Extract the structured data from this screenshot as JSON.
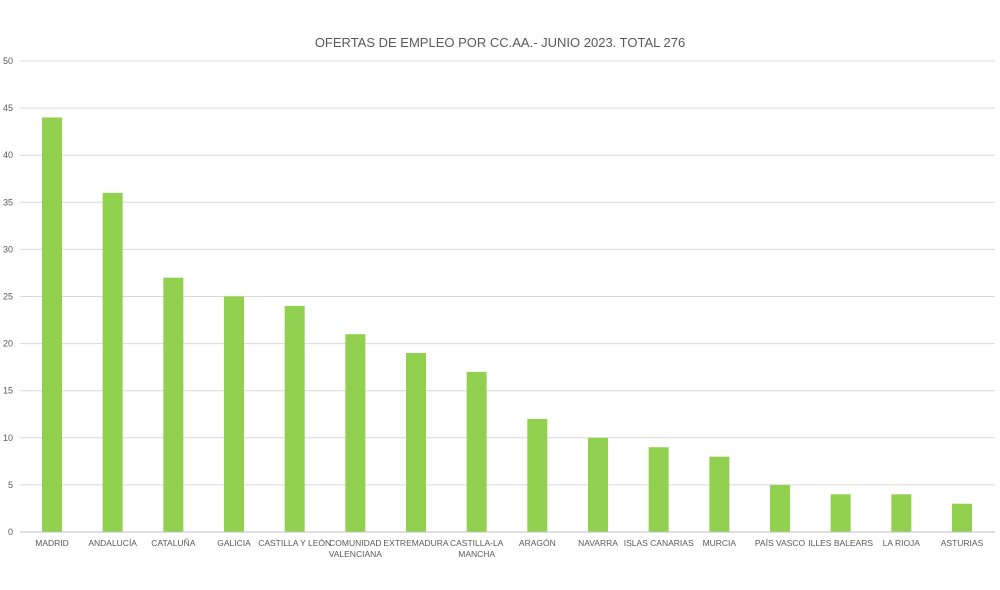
{
  "chart_data": {
    "type": "bar",
    "title": "OFERTAS DE EMPLEO POR CC.AA.- JUNIO 2023. TOTAL 276",
    "xlabel": "",
    "ylabel": "",
    "categories": [
      "MADRID",
      "ANDALUCÍA",
      "CATALUÑA",
      "GALICIA",
      "CASTILLA Y LEÓN",
      "COMUNIDAD VALENCIANA",
      "EXTREMADURA",
      "CASTILLA-LA MANCHA",
      "ARAGÓN",
      "NAVARRA",
      "ISLAS CANARIAS",
      "MURCIA",
      "PAÍS VASCO",
      "ILLES BALEARS",
      "LA RIOJA",
      "ASTURIAS"
    ],
    "category_lines": [
      [
        "MADRID"
      ],
      [
        "ANDALUCÍA"
      ],
      [
        "CATALUÑA"
      ],
      [
        "GALICIA"
      ],
      [
        "CASTILLA Y LEÓN"
      ],
      [
        "COMUNIDAD",
        "VALENCIANA"
      ],
      [
        "EXTREMADURA"
      ],
      [
        "CASTILLA-LA",
        "MANCHA"
      ],
      [
        "ARAGÓN"
      ],
      [
        "NAVARRA"
      ],
      [
        "ISLAS CANARIAS"
      ],
      [
        "MURCIA"
      ],
      [
        "PAÍS VASCO"
      ],
      [
        "ILLES BALEARS"
      ],
      [
        "LA RIOJA"
      ],
      [
        "ASTURIAS"
      ]
    ],
    "values": [
      44,
      36,
      27,
      25,
      24,
      21,
      19,
      17,
      12,
      10,
      9,
      8,
      5,
      4,
      4,
      3
    ],
    "ylim": [
      0,
      50
    ],
    "yticks": [
      0,
      5,
      10,
      15,
      20,
      25,
      30,
      35,
      40,
      45,
      50
    ],
    "grid": true,
    "legend": "none",
    "bar_color": "#92d050",
    "text_color": "#595959",
    "grid_color": "#d9d9d9"
  }
}
